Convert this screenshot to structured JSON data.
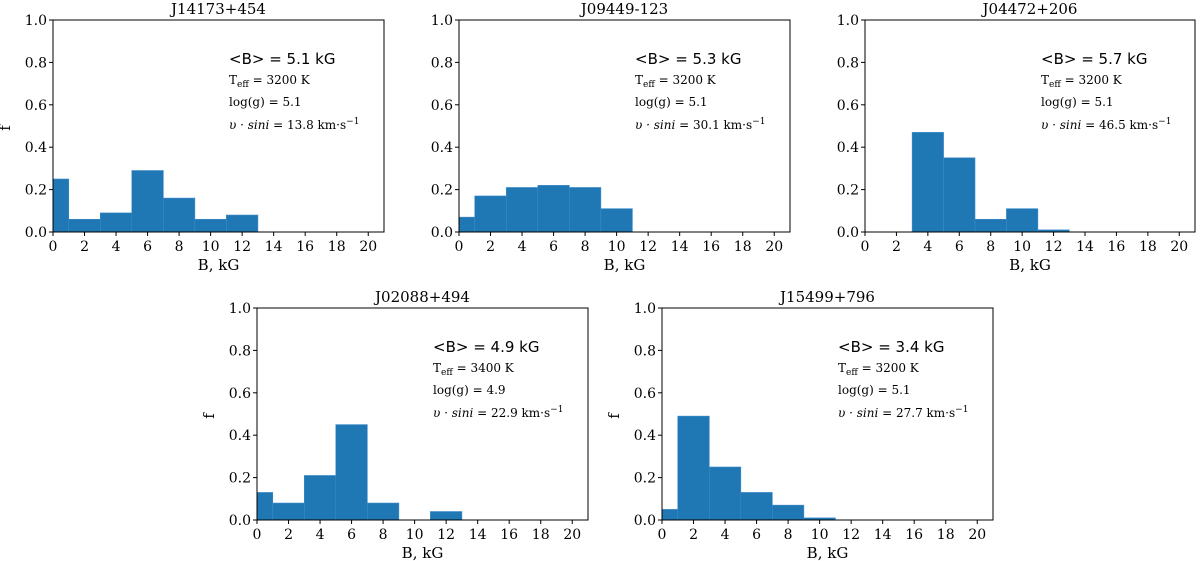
{
  "chart_data": [
    {
      "type": "bar",
      "title": "J14173+454",
      "xlabel": "B, kG",
      "ylabel": "f",
      "xlim": [
        0,
        21
      ],
      "ylim": [
        0,
        1.0
      ],
      "xticks": [
        "0",
        "2",
        "4",
        "6",
        "8",
        "10",
        "12",
        "14",
        "16",
        "18",
        "20"
      ],
      "yticks": [
        "0.0",
        "0.2",
        "0.4",
        "0.6",
        "0.8",
        "1.0"
      ],
      "bin_edges": [
        0,
        1,
        3,
        5,
        7,
        9,
        11,
        13
      ],
      "values": [
        0.25,
        0.06,
        0.09,
        0.29,
        0.16,
        0.06,
        0.08
      ],
      "color": "#1f77b4",
      "annotation": {
        "mean_b": "<B> = 5.1 kG",
        "teff": "3200 K",
        "logg": "log(g) = 5.1",
        "vsini": "13.8 km·s"
      }
    },
    {
      "type": "bar",
      "title": "J09449-123",
      "xlabel": "B, kG",
      "ylabel": "",
      "xlim": [
        0,
        21
      ],
      "ylim": [
        0,
        1.0
      ],
      "xticks": [
        "0",
        "2",
        "4",
        "6",
        "8",
        "10",
        "12",
        "14",
        "16",
        "18",
        "20"
      ],
      "yticks": [
        "0.0",
        "0.2",
        "0.4",
        "0.6",
        "0.8",
        "1.0"
      ],
      "bin_edges": [
        0,
        1,
        3,
        5,
        7,
        9,
        11
      ],
      "values": [
        0.07,
        0.17,
        0.21,
        0.22,
        0.21,
        0.11
      ],
      "color": "#1f77b4",
      "annotation": {
        "mean_b": "<B> = 5.3 kG",
        "teff": "3200 K",
        "logg": "log(g) = 5.1",
        "vsini": "30.1 km·s"
      }
    },
    {
      "type": "bar",
      "title": "J04472+206",
      "xlabel": "B, kG",
      "ylabel": "",
      "xlim": [
        0,
        21
      ],
      "ylim": [
        0,
        1.0
      ],
      "xticks": [
        "0",
        "2",
        "4",
        "6",
        "8",
        "10",
        "12",
        "14",
        "16",
        "18",
        "20"
      ],
      "yticks": [
        "0.0",
        "0.2",
        "0.4",
        "0.6",
        "0.8",
        "1.0"
      ],
      "bin_edges": [
        3,
        5,
        7,
        9,
        11,
        13
      ],
      "values": [
        0.47,
        0.35,
        0.06,
        0.11,
        0.01
      ],
      "color": "#1f77b4",
      "annotation": {
        "mean_b": "<B> = 5.7 kG",
        "teff": "3200 K",
        "logg": "log(g) = 5.1",
        "vsini": "46.5 km·s"
      }
    },
    {
      "type": "bar",
      "title": "J02088+494",
      "xlabel": "B, kG",
      "ylabel": "f",
      "xlim": [
        0,
        21
      ],
      "ylim": [
        0,
        1.0
      ],
      "xticks": [
        "0",
        "2",
        "4",
        "6",
        "8",
        "10",
        "12",
        "14",
        "16",
        "18",
        "20"
      ],
      "yticks": [
        "0.0",
        "0.2",
        "0.4",
        "0.6",
        "0.8",
        "1.0"
      ],
      "bin_edges": [
        0,
        1,
        3,
        5,
        7,
        9,
        11,
        13
      ],
      "values": [
        0.13,
        0.08,
        0.21,
        0.45,
        0.08,
        0.0,
        0.04
      ],
      "color": "#1f77b4",
      "annotation": {
        "mean_b": "<B> = 4.9 kG",
        "teff": "3400 K",
        "logg": "log(g) = 4.9",
        "vsini": "22.9 km·s"
      }
    },
    {
      "type": "bar",
      "title": "J15499+796",
      "xlabel": "B, kG",
      "ylabel": "f",
      "xlim": [
        0,
        21
      ],
      "ylim": [
        0,
        1.0
      ],
      "xticks": [
        "0",
        "2",
        "4",
        "6",
        "8",
        "10",
        "12",
        "14",
        "16",
        "18",
        "20"
      ],
      "yticks": [
        "0.0",
        "0.2",
        "0.4",
        "0.6",
        "0.8",
        "1.0"
      ],
      "bin_edges": [
        0,
        1,
        3,
        5,
        7,
        9,
        11
      ],
      "values": [
        0.05,
        0.49,
        0.25,
        0.13,
        0.07,
        0.01
      ],
      "color": "#1f77b4",
      "annotation": {
        "mean_b": "<B> = 3.4 kG",
        "teff": "3200 K",
        "logg": "log(g) = 5.1",
        "vsini": "27.7 km·s"
      }
    }
  ]
}
